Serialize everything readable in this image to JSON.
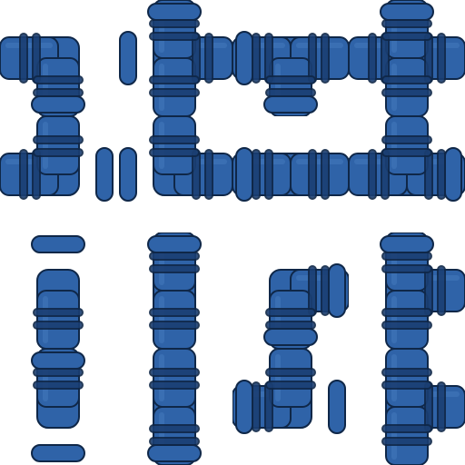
{
  "sheet": {
    "kind": "pipe-tile-spritesheet",
    "grid": {
      "rows": 4,
      "cols": 4
    },
    "colors": {
      "pipe": "#2f63a8",
      "pipe_dark": "#1b3f73",
      "pipe_light": "#4f86c8",
      "outline": "#0f2748",
      "background": "#ffffff"
    }
  },
  "tiles": [
    {
      "id": "t00",
      "kind": "elbow",
      "connects": [
        "left",
        "bottom"
      ],
      "caps": [
        "bottom"
      ]
    },
    {
      "id": "t01",
      "kind": "tee",
      "connects": [
        "top",
        "right",
        "bottom"
      ],
      "caps": [
        "top",
        "left"
      ]
    },
    {
      "id": "t02",
      "kind": "tee",
      "connects": [
        "left",
        "right",
        "bottom"
      ],
      "caps": [
        "left",
        "bottom"
      ]
    },
    {
      "id": "t03",
      "kind": "cross",
      "connects": [
        "left",
        "right",
        "top",
        "bottom"
      ],
      "caps": [
        "top"
      ]
    },
    {
      "id": "t10",
      "kind": "elbow",
      "connects": [
        "left",
        "top"
      ],
      "caps": [
        "right"
      ]
    },
    {
      "id": "t11",
      "kind": "elbow",
      "connects": [
        "top",
        "right"
      ],
      "caps": [
        "left"
      ]
    },
    {
      "id": "t12",
      "kind": "elbow",
      "connects": [
        "left",
        "right"
      ],
      "caps": [
        "left"
      ]
    },
    {
      "id": "t13",
      "kind": "tee",
      "connects": [
        "left",
        "right",
        "top"
      ],
      "caps": [
        "right"
      ]
    },
    {
      "id": "t20",
      "kind": "short-cap",
      "connects": [
        "bottom"
      ],
      "caps": [
        "top"
      ]
    },
    {
      "id": "t21",
      "kind": "straight",
      "connects": [
        "top",
        "bottom"
      ],
      "caps": [
        "top"
      ]
    },
    {
      "id": "t22",
      "kind": "elbow",
      "connects": [
        "right",
        "bottom"
      ],
      "caps": [
        "right",
        "bottom"
      ]
    },
    {
      "id": "t23",
      "kind": "tee",
      "connects": [
        "top",
        "right",
        "bottom"
      ],
      "caps": [
        "top"
      ]
    },
    {
      "id": "t30",
      "kind": "short-cap",
      "connects": [
        "top"
      ],
      "caps": [
        "top",
        "bottom"
      ]
    },
    {
      "id": "t31",
      "kind": "straight",
      "connects": [
        "top",
        "bottom"
      ],
      "caps": [
        "bottom"
      ]
    },
    {
      "id": "t32",
      "kind": "elbow",
      "connects": [
        "top",
        "left"
      ],
      "caps": [
        "left",
        "right"
      ]
    },
    {
      "id": "t33",
      "kind": "tee",
      "connects": [
        "top",
        "right",
        "bottom"
      ],
      "caps": []
    }
  ]
}
